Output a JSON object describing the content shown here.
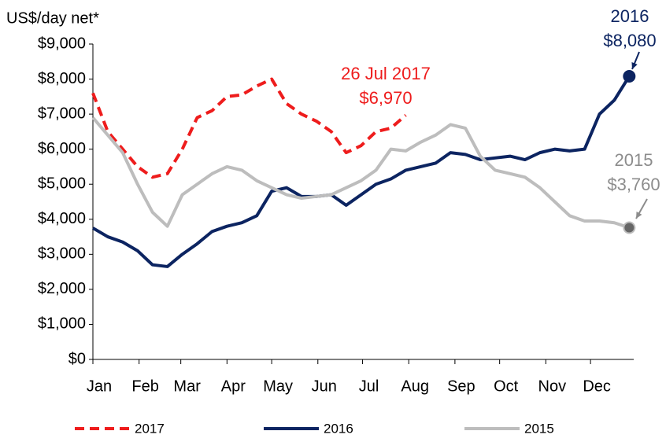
{
  "chart_data": {
    "type": "line",
    "y_axis_label": "US$/day net*",
    "x": [
      0,
      10,
      20,
      30,
      40,
      50,
      60,
      70,
      80,
      90,
      100,
      110,
      120,
      130,
      140,
      150,
      160,
      170,
      180,
      190,
      200,
      210,
      220,
      230,
      240,
      250,
      260,
      270,
      280,
      290,
      300,
      310,
      320,
      330,
      340,
      350,
      360
    ],
    "xlim": [
      0,
      363
    ],
    "xticks": [
      {
        "value": 0,
        "label": "Jan"
      },
      {
        "value": 31,
        "label": "Feb"
      },
      {
        "value": 59,
        "label": "Mar"
      },
      {
        "value": 90,
        "label": "Apr"
      },
      {
        "value": 120,
        "label": "May"
      },
      {
        "value": 151,
        "label": "Jun"
      },
      {
        "value": 181,
        "label": "Jul"
      },
      {
        "value": 212,
        "label": "Aug"
      },
      {
        "value": 243,
        "label": "Sep"
      },
      {
        "value": 273,
        "label": "Oct"
      },
      {
        "value": 304,
        "label": "Nov"
      },
      {
        "value": 334,
        "label": "Dec"
      }
    ],
    "ylim": [
      0,
      9000
    ],
    "yticks": [
      {
        "value": 0,
        "label": "$0"
      },
      {
        "value": 1000,
        "label": "$1,000"
      },
      {
        "value": 2000,
        "label": "$2,000"
      },
      {
        "value": 3000,
        "label": "$3,000"
      },
      {
        "value": 4000,
        "label": "$4,000"
      },
      {
        "value": 5000,
        "label": "$5,000"
      },
      {
        "value": 6000,
        "label": "$6,000"
      },
      {
        "value": 7000,
        "label": "$7,000"
      },
      {
        "value": 8000,
        "label": "$8,000"
      },
      {
        "value": 9000,
        "label": "$9,000"
      }
    ],
    "series": [
      {
        "name": "2017",
        "color": "#ee1c1c",
        "dashed": true,
        "values": [
          7600,
          6500,
          6000,
          5500,
          5200,
          5300,
          6000,
          6900,
          7100,
          7500,
          7550,
          7800,
          8000,
          7300,
          7000,
          6800,
          6500,
          5900,
          6100,
          6500,
          6600,
          6970,
          null,
          null,
          null,
          null,
          null,
          null,
          null,
          null,
          null,
          null,
          null,
          null,
          null,
          null,
          null
        ]
      },
      {
        "name": "2016",
        "color": "#0c2461",
        "dashed": false,
        "end_marker": true,
        "values": [
          3750,
          3500,
          3350,
          3100,
          2700,
          2650,
          3000,
          3300,
          3650,
          3800,
          3900,
          4100,
          4800,
          4900,
          4650,
          4650,
          4700,
          4400,
          4700,
          5000,
          5150,
          5400,
          5500,
          5600,
          5900,
          5850,
          5700,
          5750,
          5800,
          5700,
          5900,
          6000,
          5950,
          6000,
          7000,
          7400,
          8080
        ]
      },
      {
        "name": "2015",
        "color": "#bdbdbd",
        "dashed": false,
        "end_marker": true,
        "marker_color": "#666666",
        "values": [
          6900,
          6400,
          5900,
          5000,
          4200,
          3800,
          4700,
          5000,
          5300,
          5500,
          5400,
          5100,
          4900,
          4700,
          4600,
          4650,
          4700,
          4900,
          5100,
          5400,
          6000,
          5950,
          6200,
          6400,
          6700,
          6600,
          5800,
          5400,
          5300,
          5200,
          4900,
          4500,
          4100,
          3950,
          3950,
          3900,
          3760
        ]
      }
    ],
    "annotations": [
      {
        "lines": [
          "26 Jul 2017",
          "$6,970"
        ],
        "color": "#ee1c1c"
      },
      {
        "lines": [
          "2016",
          "$8,080"
        ],
        "color": "#0c2461"
      },
      {
        "lines": [
          "2015",
          "$3,760"
        ],
        "color": "#8c8c8c"
      }
    ]
  }
}
